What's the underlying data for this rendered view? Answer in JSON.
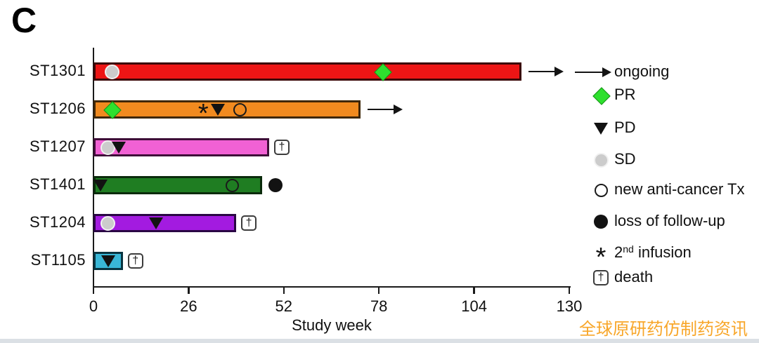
{
  "panel_label": "C",
  "watermark": {
    "text": "全球原研药仿制药资讯",
    "color": "#F8A21E"
  },
  "chart_data": {
    "type": "bar",
    "variant": "swimmer-plot",
    "title": "",
    "xlabel": "Study week",
    "ylabel": "",
    "xlim": [
      0,
      130
    ],
    "x_ticks": [
      0,
      26,
      52,
      78,
      104,
      130
    ],
    "grid": false,
    "legend_position": "right",
    "patients": [
      {
        "id": "ST1301",
        "color": "#ED1515",
        "border": "#3B0707",
        "length_weeks": 117,
        "end_event": "ongoing",
        "markers": [
          {
            "type": "SD",
            "week": 5
          },
          {
            "type": "PR",
            "week": 79
          }
        ]
      },
      {
        "id": "ST1206",
        "color": "#F18A1F",
        "border": "#3F2708",
        "length_weeks": 73,
        "end_event": "ongoing",
        "markers": [
          {
            "type": "PR",
            "week": 5
          },
          {
            "type": "second_infusion",
            "week": 30
          },
          {
            "type": "PD",
            "week": 34
          },
          {
            "type": "new_tx",
            "week": 40
          }
        ]
      },
      {
        "id": "ST1207",
        "color": "#F161D4",
        "border": "#3E0E38",
        "length_weeks": 48,
        "end_event": "death",
        "markers": [
          {
            "type": "SD",
            "week": 4
          },
          {
            "type": "PD",
            "week": 7
          }
        ]
      },
      {
        "id": "ST1401",
        "color": "#1F7D22",
        "border": "#0B2B0C",
        "length_weeks": 46,
        "end_event": "loss_of_follow_up",
        "markers": [
          {
            "type": "PD",
            "week": 2
          },
          {
            "type": "new_tx",
            "week": 38
          }
        ]
      },
      {
        "id": "ST1204",
        "color": "#A31BE0",
        "border": "#2A0744",
        "length_weeks": 39,
        "end_event": "death",
        "markers": [
          {
            "type": "SD",
            "week": 4
          },
          {
            "type": "PD",
            "week": 17
          }
        ]
      },
      {
        "id": "ST1105",
        "color": "#39B7D7",
        "border": "#093440",
        "length_weeks": 8,
        "end_event": "death",
        "markers": [
          {
            "type": "PD",
            "week": 4
          }
        ]
      }
    ],
    "legend": [
      {
        "symbol": "arrow",
        "label": "ongoing"
      },
      {
        "symbol": "PR",
        "label": "PR"
      },
      {
        "symbol": "PD",
        "label": "PD"
      },
      {
        "symbol": "SD",
        "label": "SD"
      },
      {
        "symbol": "new_tx",
        "label": "new anti-cancer Tx"
      },
      {
        "symbol": "loss_of_follow_up",
        "label": "loss of follow-up"
      },
      {
        "symbol": "second_infusion",
        "label": "2nd infusion",
        "label_parts": {
          "pre": "2",
          "sup": "nd",
          "post": " infusion"
        }
      },
      {
        "symbol": "death",
        "label": "death"
      }
    ],
    "marker_colors": {
      "PR": "#2EE02E",
      "PR_border": "#149014",
      "SD": "#CCCCCC",
      "SD_halo": "#F1F1F1",
      "PD": "#121212",
      "outline": "#1B1B1B",
      "loss": "#121212"
    },
    "symbols": {
      "second_infusion_glyph": "*",
      "death_glyph": "†"
    }
  }
}
